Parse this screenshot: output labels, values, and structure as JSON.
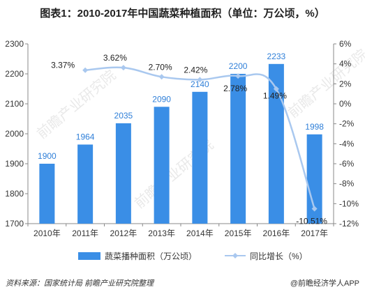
{
  "chart_data": {
    "type": "bar",
    "title": "图表1：2010-2017年中国蔬菜种植面积（单位：万公顷，%）",
    "categories": [
      "2010年",
      "2011年",
      "2012年",
      "2013年",
      "2014年",
      "2015年",
      "2016年",
      "2017年"
    ],
    "series": [
      {
        "name": "蔬菜播种面积（万公顷）",
        "type": "bar",
        "values": [
          1900,
          1964,
          2035,
          2090,
          2140,
          2200,
          2233,
          1998
        ],
        "labels": [
          "1900",
          "1964",
          "2035",
          "2090",
          "2140",
          "2200",
          "2233",
          "1998"
        ],
        "color": "#3a8ee6"
      },
      {
        "name": "同比增长（%）",
        "type": "line",
        "axis": "right",
        "values": [
          null,
          3.37,
          3.62,
          2.7,
          2.42,
          2.78,
          1.49,
          -10.51
        ],
        "labels": [
          "",
          "3.37%",
          "3.62%",
          "2.70%",
          "2.42%",
          "2.78%",
          "1.49%",
          "-10.51%"
        ],
        "color": "#a9c8ef"
      }
    ],
    "y_left": {
      "min": 1700,
      "max": 2300,
      "step": 100,
      "ticks": [
        "1700",
        "1800",
        "1900",
        "2000",
        "2100",
        "2200",
        "2300"
      ]
    },
    "y_right": {
      "min": -12,
      "max": 6,
      "step": 2,
      "ticks": [
        "-12%",
        "-10%",
        "-8%",
        "-6%",
        "-4%",
        "-2%",
        "0%",
        "2%",
        "4%",
        "6%"
      ]
    },
    "legend_position": "bottom",
    "grid": false
  },
  "source_note": "资料来源：国家统计局  前瞻产业研究院整理",
  "app_credit": "@前瞻经济学人APP",
  "watermark": "前瞻产业研究院"
}
